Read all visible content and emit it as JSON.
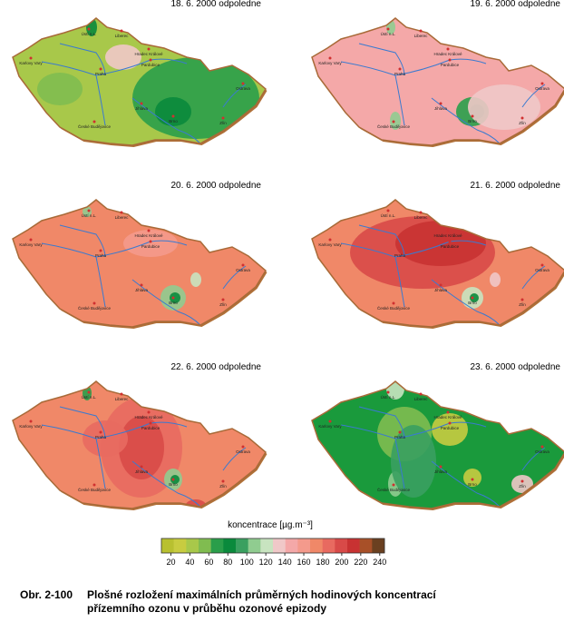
{
  "panels": [
    {
      "title": "18. 6. 2000  odpoledne"
    },
    {
      "title": "19. 6. 2000  odpoledne"
    },
    {
      "title": "20. 6. 2000  odpoledne"
    },
    {
      "title": "21. 6. 2000  odpoledne"
    },
    {
      "title": "22. 6. 2000  odpoledne"
    },
    {
      "title": "23. 6. 2000  odpoledne"
    }
  ],
  "cities": [
    "Karlovy Vary",
    "Ústí n.L.",
    "Liberec",
    "Hradec Králové",
    "Pardubice",
    "Praha",
    "Ostrava",
    "Jihlava",
    "Brno",
    "Zlín",
    "České Budějovice"
  ],
  "legend": {
    "title": "koncentrace  [µg.m⁻³]",
    "ticks": [
      20,
      40,
      60,
      80,
      100,
      120,
      140,
      160,
      180,
      200,
      220,
      240
    ],
    "lim": [
      10,
      245
    ],
    "colors": [
      "#b8c030",
      "#c8cc40",
      "#a8c84a",
      "#80bc50",
      "#2a9e4a",
      "#0a8a3c",
      "#3aa060",
      "#90cc90",
      "#c8e4c0",
      "#f0c8c8",
      "#f4a8a8",
      "#f49a8c",
      "#f08868",
      "#e86a60",
      "#d84a48",
      "#c83232",
      "#a85028",
      "#6a4020"
    ]
  },
  "caption": {
    "label": "Obr. 2-100",
    "line1": "Plošné rozložení maximálních průměrných hodinových koncentrací",
    "line2": "přízemního ozonu v průběhu ozonové epizody"
  }
}
